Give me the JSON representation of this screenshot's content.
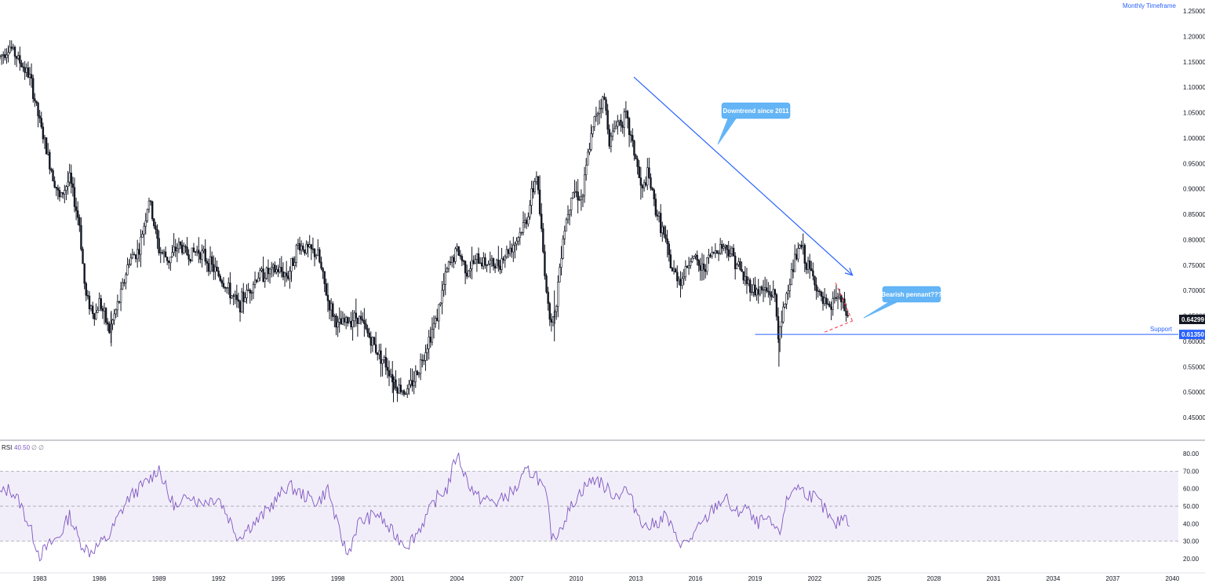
{
  "timeframe_label": "Monthly Timeframe",
  "price_axis": {
    "ticks": [
      "1.25000",
      "1.20000",
      "1.15000",
      "1.10000",
      "1.05000",
      "1.00000",
      "0.95000",
      "0.90000",
      "0.85000",
      "0.80000",
      "0.75000",
      "0.70000",
      "0.65000",
      "0.60000",
      "0.55000",
      "0.50000",
      "0.45000"
    ],
    "current_price": "0.64299",
    "support_price": "0.61350"
  },
  "time_axis": {
    "labels": [
      "1983",
      "1986",
      "1989",
      "1992",
      "1995",
      "1998",
      "2001",
      "2004",
      "2007",
      "2010",
      "2013",
      "2016",
      "2019",
      "2022",
      "2025",
      "2028",
      "2031",
      "2034",
      "2037",
      "2040"
    ]
  },
  "annotations": {
    "downtrend": "Downtrend since 2011",
    "pennant": "Bearish pennant???",
    "support": "Support"
  },
  "rsi_legend": {
    "name": "RSI",
    "value": "40.50",
    "extra1": "∅",
    "extra2": "∅"
  },
  "rsi_axis": {
    "ticks": [
      "80.00",
      "70.00",
      "60.00",
      "50.00",
      "40.00",
      "30.00",
      "20.00"
    ]
  },
  "colors": {
    "candle": "#131722",
    "trendline": "#2962ff",
    "callout": "#64b5f6",
    "pennant": "#f23645",
    "rsi_line": "#7e57c2",
    "rsi_band": "#ede7f6",
    "current_price_bg": "#131722",
    "support_bg": "#2962ff"
  },
  "chart_data": [
    {
      "type": "candlestick",
      "ylim": [
        0.43,
        1.25
      ],
      "xlim": [
        1981.0,
        2040.3
      ],
      "key_points": {
        "x": [
          1981.0,
          1981.5,
          1982.0,
          1982.5,
          1983.0,
          1983.5,
          1984.0,
          1984.5,
          1985.0,
          1985.3,
          1985.8,
          1986.0,
          1986.5,
          1987.0,
          1987.5,
          1988.0,
          1988.5,
          1989.0,
          1989.5,
          1990.0,
          1990.5,
          1991.0,
          1992.0,
          1993.0,
          1993.5,
          1994.0,
          1995.0,
          1995.5,
          1996.0,
          1997.0,
          1997.5,
          1998.0,
          1998.5,
          1999.0,
          2000.0,
          2000.5,
          2001.0,
          2001.5,
          2002.0,
          2003.0,
          2003.5,
          2004.0,
          2004.5,
          2005.0,
          2006.0,
          2007.0,
          2007.5,
          2008.0,
          2008.3,
          2008.6,
          2008.9,
          2009.3,
          2009.8,
          2010.3,
          2010.6,
          2011.0,
          2011.4,
          2011.7,
          2012.0,
          2012.5,
          2013.0,
          2013.3,
          2013.6,
          2014.0,
          2014.4,
          2014.8,
          2015.3,
          2015.8,
          2016.3,
          2016.8,
          2017.3,
          2017.7,
          2018.0,
          2018.5,
          2019.0,
          2019.5,
          2020.0,
          2020.2,
          2020.5,
          2021.0,
          2021.3,
          2021.6,
          2022.0,
          2022.3,
          2022.8,
          2023.0,
          2023.3,
          2023.7
        ],
        "y": [
          1.16,
          1.18,
          1.15,
          1.12,
          1.03,
          0.95,
          0.88,
          0.92,
          0.83,
          0.69,
          0.65,
          0.68,
          0.62,
          0.68,
          0.76,
          0.78,
          0.88,
          0.78,
          0.76,
          0.79,
          0.77,
          0.78,
          0.73,
          0.67,
          0.7,
          0.73,
          0.74,
          0.73,
          0.79,
          0.77,
          0.68,
          0.63,
          0.64,
          0.65,
          0.58,
          0.55,
          0.51,
          0.5,
          0.54,
          0.65,
          0.74,
          0.78,
          0.74,
          0.76,
          0.75,
          0.8,
          0.84,
          0.93,
          0.79,
          0.66,
          0.64,
          0.8,
          0.9,
          0.88,
          0.97,
          1.05,
          1.08,
          0.99,
          1.03,
          1.04,
          0.96,
          0.89,
          0.93,
          0.86,
          0.81,
          0.74,
          0.72,
          0.77,
          0.74,
          0.77,
          0.79,
          0.78,
          0.76,
          0.72,
          0.7,
          0.7,
          0.69,
          0.6,
          0.68,
          0.76,
          0.79,
          0.75,
          0.72,
          0.68,
          0.66,
          0.69,
          0.68,
          0.643
        ]
      },
      "current_price": 0.64299,
      "support_level": 0.6135,
      "downtrend_line": {
        "start": [
          2012.9,
          1.12
        ],
        "end": [
          2023.9,
          0.73
        ]
      },
      "pennant": {
        "upper": [
          [
            2023.05,
            0.715
          ],
          [
            2023.9,
            0.64
          ]
        ],
        "lower": [
          [
            2022.5,
            0.618
          ],
          [
            2023.9,
            0.64
          ]
        ]
      }
    },
    {
      "type": "line",
      "series": [
        {
          "name": "RSI",
          "last": 40.5
        }
      ],
      "ylim": [
        15,
        85
      ],
      "bands": [
        30,
        50,
        70
      ],
      "key_points": {
        "x": [
          1981.0,
          1981.5,
          1982.0,
          1982.5,
          1983.0,
          1983.5,
          1984.0,
          1984.5,
          1985.0,
          1985.5,
          1986.0,
          1986.5,
          1987.0,
          1987.5,
          1988.0,
          1988.5,
          1989.0,
          1989.5,
          1990.0,
          1990.5,
          1991.0,
          1992.0,
          1993.0,
          1993.5,
          1994.0,
          1995.0,
          1995.5,
          1996.0,
          1997.0,
          1997.5,
          1998.0,
          1998.5,
          1999.0,
          2000.0,
          2000.5,
          2001.0,
          2001.5,
          2002.0,
          2003.0,
          2003.5,
          2004.0,
          2004.5,
          2005.0,
          2006.0,
          2007.0,
          2007.5,
          2008.0,
          2008.5,
          2008.8,
          2009.3,
          2010.0,
          2010.5,
          2011.0,
          2011.5,
          2012.0,
          2012.5,
          2013.0,
          2013.5,
          2014.0,
          2014.5,
          2015.0,
          2015.5,
          2016.0,
          2016.5,
          2017.0,
          2017.5,
          2018.0,
          2018.5,
          2019.0,
          2019.5,
          2020.0,
          2020.2,
          2020.5,
          2021.0,
          2021.5,
          2022.0,
          2022.5,
          2023.0,
          2023.5,
          2023.8
        ],
        "y": [
          57,
          60,
          52,
          38,
          22,
          28,
          33,
          45,
          30,
          24,
          28,
          33,
          45,
          55,
          60,
          65,
          72,
          55,
          48,
          58,
          52,
          55,
          32,
          38,
          42,
          55,
          62,
          58,
          52,
          60,
          38,
          22,
          40,
          46,
          38,
          32,
          28,
          35,
          55,
          60,
          80,
          65,
          55,
          52,
          60,
          70,
          68,
          55,
          30,
          40,
          55,
          62,
          66,
          60,
          56,
          60,
          48,
          38,
          40,
          45,
          32,
          28,
          35,
          42,
          50,
          55,
          45,
          50,
          40,
          42,
          38,
          32,
          50,
          62,
          58,
          55,
          48,
          38,
          45,
          40.5
        ]
      }
    }
  ]
}
